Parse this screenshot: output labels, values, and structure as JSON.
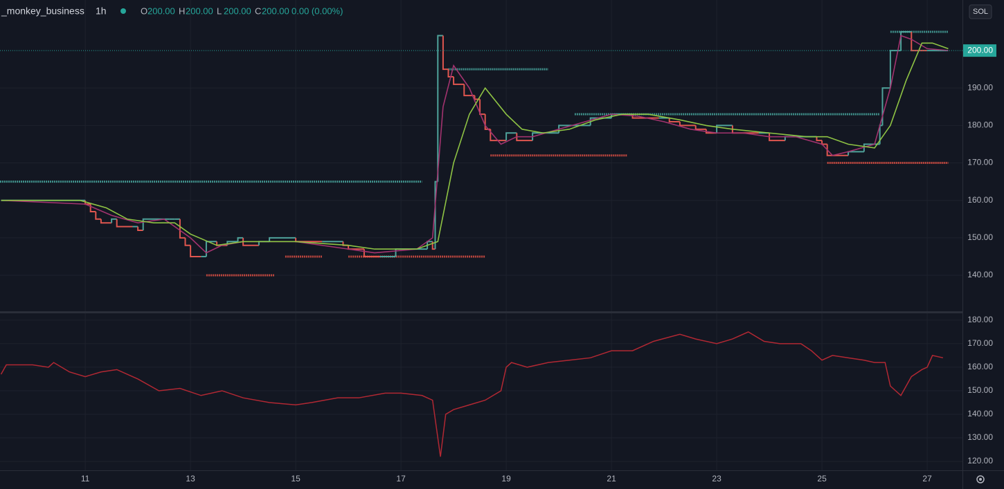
{
  "toolbar": {
    "currency": "SOL"
  },
  "chart_data": [
    {
      "type": "step-price",
      "title": "_monkey_business",
      "interval": "1h",
      "ohlc": [
        {
          "name": "O",
          "text": "200.00"
        },
        {
          "name": "H",
          "text": "200.00"
        },
        {
          "name": "L",
          "text": "200.00"
        },
        {
          "name": "C",
          "text": "200.00"
        }
      ],
      "change": "0.00 (0.00%)",
      "xlim": [
        9.38,
        27.67
      ],
      "xticks": [
        11,
        13,
        15,
        17,
        19,
        21,
        23,
        25,
        27
      ],
      "ylim": [
        130.4,
        213.5
      ],
      "yticks": [
        {
          "value": 140,
          "label": "140.00"
        },
        {
          "value": 150,
          "label": "150.00"
        },
        {
          "value": 160,
          "label": "160.00"
        },
        {
          "value": 170,
          "label": "170.00"
        },
        {
          "value": 180,
          "label": "180.00"
        },
        {
          "value": 190,
          "label": "190.00"
        }
      ],
      "grid": true,
      "last_price": {
        "value": 200,
        "label": "200.00",
        "color": "#26a69a"
      },
      "up_color": "#4fa39b",
      "down_color": "#e0564f",
      "x": [
        9.4,
        10.9,
        11.0,
        11.1,
        11.2,
        11.3,
        11.5,
        11.6,
        11.9,
        12.0,
        12.1,
        12.4,
        12.6,
        12.7,
        12.8,
        12.9,
        13.0,
        13.2,
        13.3,
        13.5,
        13.7,
        13.9,
        14.0,
        14.3,
        14.5,
        14.9,
        15.0,
        15.5,
        15.9,
        16.0,
        16.3,
        16.6,
        16.9,
        17.3,
        17.5,
        17.6,
        17.65,
        17.7,
        17.8,
        17.9,
        18.0,
        18.2,
        18.4,
        18.5,
        18.6,
        18.7,
        19.0,
        19.2,
        19.5,
        19.8,
        20.0,
        20.3,
        20.6,
        21.0,
        21.4,
        21.9,
        22.1,
        22.3,
        22.6,
        22.8,
        23.0,
        23.3,
        23.8,
        24.0,
        24.3,
        24.9,
        25.0,
        25.1,
        25.5,
        25.8,
        26.0,
        26.1,
        26.15,
        26.3,
        26.5,
        26.7,
        27.0,
        27.4
      ],
      "values": [
        160,
        160,
        159,
        157,
        155,
        154,
        155,
        153,
        153,
        152,
        155,
        155,
        155,
        155,
        150,
        148,
        145,
        145,
        149,
        148,
        149,
        150,
        148,
        149,
        150,
        150,
        149,
        149,
        148,
        147,
        145,
        145,
        147,
        147,
        149,
        147,
        165,
        204,
        195,
        193,
        191,
        188,
        187,
        183,
        179,
        176,
        178,
        176,
        178,
        178,
        180,
        180,
        182,
        183,
        182,
        182,
        181,
        180,
        179,
        178,
        180,
        178,
        178,
        176,
        177,
        176,
        175,
        172,
        173,
        175,
        175,
        180,
        190,
        200,
        205,
        200,
        200,
        200
      ],
      "series": [
        {
          "color": "#a3336f",
          "x": [
            9.4,
            11,
            11.5,
            12,
            12.5,
            13,
            13.3,
            13.6,
            14,
            14.5,
            15,
            16,
            16.5,
            17.3,
            17.6,
            17.8,
            18.0,
            18.3,
            18.6,
            18.9,
            19.2,
            19.5,
            20,
            20.5,
            21,
            21.5,
            22,
            22.5,
            23,
            23.5,
            24,
            24.5,
            25,
            25.2,
            25.5,
            26,
            26.3,
            26.5,
            26.7,
            27,
            27.4
          ],
          "values": [
            160,
            159,
            156,
            154,
            155,
            150,
            146,
            148,
            149,
            149,
            149,
            147,
            146,
            147,
            150,
            185,
            196,
            190,
            180,
            175,
            177,
            177,
            179,
            181,
            183,
            182.5,
            181,
            179,
            178,
            178,
            177,
            177,
            175,
            172,
            173,
            175,
            190,
            204,
            203,
            200.5,
            200
          ]
        },
        {
          "color": "#8fc444",
          "x": [
            9.4,
            10.9,
            11.4,
            11.8,
            12.3,
            12.7,
            13,
            13.5,
            14,
            15,
            16,
            16.5,
            17.3,
            17.7,
            18.0,
            18.3,
            18.6,
            19,
            19.3,
            19.7,
            20.2,
            20.7,
            21.2,
            21.7,
            22.3,
            22.8,
            23.3,
            24,
            24.7,
            25.1,
            25.5,
            26.0,
            26.3,
            26.6,
            26.9,
            27.1,
            27.4
          ],
          "values": [
            160,
            160,
            158,
            155,
            154,
            154,
            151,
            148,
            149,
            149,
            148,
            147,
            147,
            149,
            170,
            183,
            190,
            183,
            179,
            178,
            179,
            181.5,
            183,
            183,
            181.5,
            180,
            179,
            178,
            177,
            177,
            175,
            174,
            180,
            192,
            202,
            202,
            200.5
          ]
        }
      ],
      "levels": [
        {
          "color": "#3f8f8a",
          "x": [
            9.38,
            17.4
          ],
          "value": 165
        },
        {
          "color": "#3f8f8a",
          "x": [
            17.9,
            19.8
          ],
          "value": 195
        },
        {
          "color": "#3f8f8a",
          "x": [
            20.3,
            26.1
          ],
          "value": 183
        },
        {
          "color": "#3f8f8a",
          "x": [
            26.3,
            27.4
          ],
          "value": 205
        },
        {
          "color": "#c0473f",
          "x": [
            13.3,
            14.6
          ],
          "value": 140
        },
        {
          "color": "#c0473f",
          "x": [
            14.8,
            15.5
          ],
          "value": 145
        },
        {
          "color": "#c0473f",
          "x": [
            16.0,
            18.6
          ],
          "value": 145
        },
        {
          "color": "#c0473f",
          "x": [
            18.7,
            21.3
          ],
          "value": 172
        },
        {
          "color": "#c0473f",
          "x": [
            25.1,
            27.4
          ],
          "value": 170
        }
      ]
    },
    {
      "type": "line",
      "xlim": [
        9.38,
        27.67
      ],
      "ylim": [
        116.2,
        182.9
      ],
      "yticks": [
        {
          "value": 120,
          "label": "120.00"
        },
        {
          "value": 130,
          "label": "130.00"
        },
        {
          "value": 140,
          "label": "140.00"
        },
        {
          "value": 150,
          "label": "150.00"
        },
        {
          "value": 160,
          "label": "160.00"
        },
        {
          "value": 170,
          "label": "170.00"
        },
        {
          "value": 180,
          "label": "180.00"
        }
      ],
      "grid": true,
      "color": "#b22833",
      "x": [
        9.4,
        9.5,
        10,
        10.3,
        10.4,
        10.7,
        11,
        11.3,
        11.6,
        11.8,
        12,
        12.4,
        12.8,
        13.2,
        13.6,
        14,
        14.5,
        15,
        15.3,
        15.8,
        16.2,
        16.7,
        17,
        17.4,
        17.6,
        17.7,
        17.75,
        17.85,
        18.0,
        18.3,
        18.6,
        18.9,
        19,
        19.1,
        19.4,
        19.8,
        20.2,
        20.6,
        21,
        21.4,
        21.8,
        22.3,
        22.6,
        23,
        23.3,
        23.6,
        23.9,
        24.2,
        24.6,
        24.8,
        25.0,
        25.2,
        25.5,
        25.8,
        26.0,
        26.2,
        26.3,
        26.5,
        26.7,
        26.9,
        27.0,
        27.1,
        27.3
      ],
      "values": [
        157,
        161,
        161,
        160,
        162,
        158,
        156,
        158,
        159,
        157,
        155,
        150,
        151,
        148,
        150,
        147,
        145,
        144,
        145,
        147,
        147,
        149,
        149,
        148,
        146,
        130,
        122,
        140,
        142,
        144,
        146,
        150,
        160,
        162,
        160,
        162,
        163,
        164,
        167,
        167,
        171,
        174,
        172,
        170,
        172,
        175,
        171,
        170,
        170,
        167,
        163,
        165,
        164,
        163,
        162,
        162,
        152,
        148,
        156,
        159,
        160,
        165,
        164
      ]
    }
  ]
}
